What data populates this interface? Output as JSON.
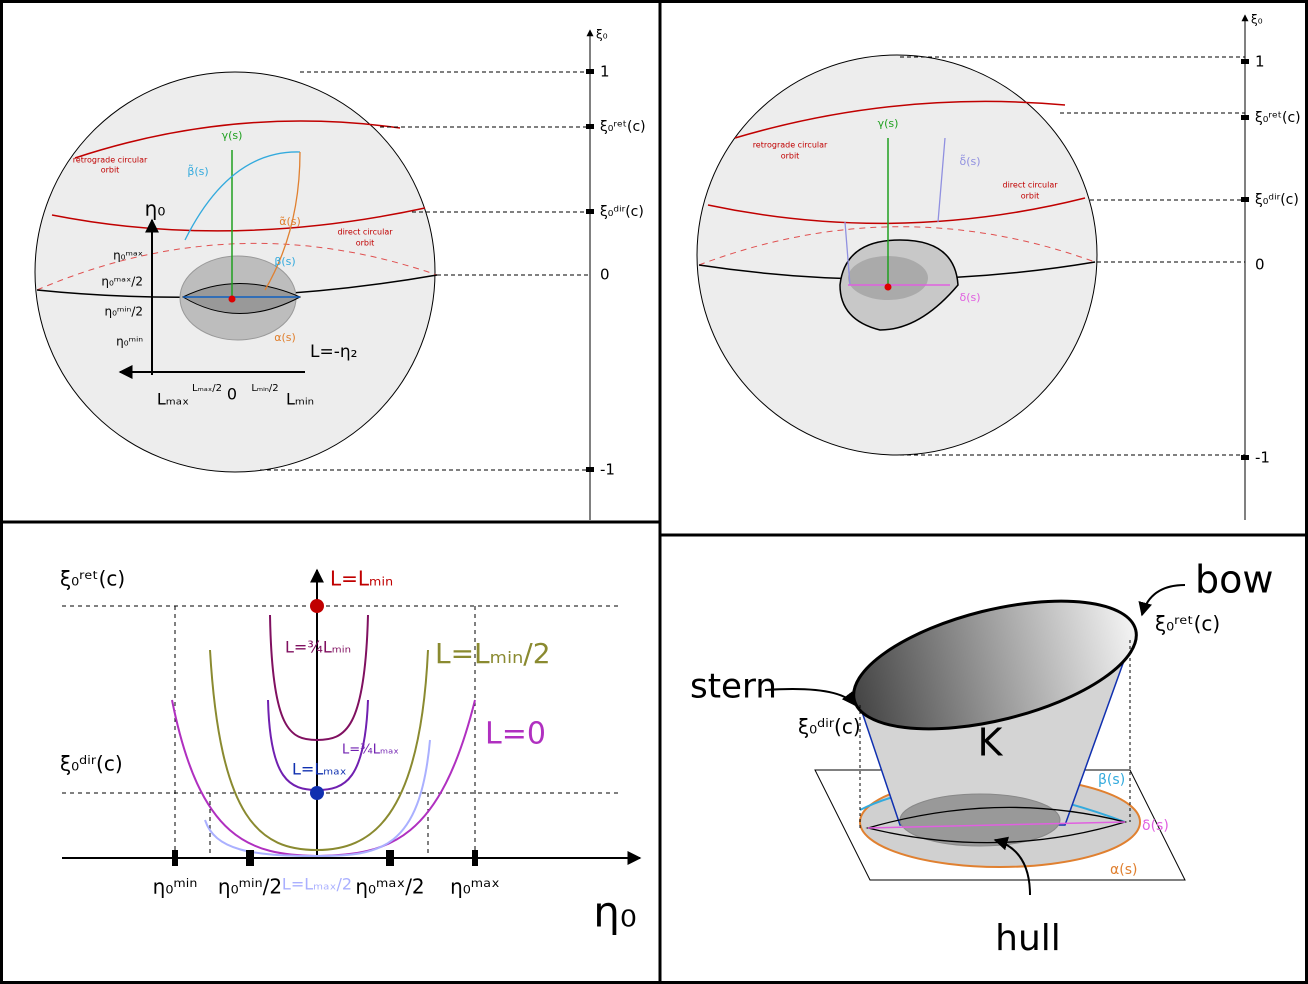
{
  "top_left": {
    "axis_label": "ξ₀",
    "ticks": [
      "1",
      "ξ₀ʳᵉᵗ(c)",
      "ξ₀ᵈⁱʳ(c)",
      "0",
      "-1"
    ],
    "orbit_retro": [
      "retrograde circular",
      "orbit"
    ],
    "orbit_direct": [
      "direct circular",
      "orbit"
    ],
    "curves": [
      "γ(s)",
      "β̃(s)",
      "α̃(s)",
      "β(s)",
      "α(s)"
    ],
    "eta_axis": "η₀",
    "eta_ticks": [
      "η₀ᵐᵃˣ",
      "η₀ᵐᵃˣ/2",
      "η₀ᵐⁱⁿ/2",
      "η₀ᵐⁱⁿ"
    ],
    "l_axis": "L=-η₂",
    "l_ticks": [
      "Lₘₐₓ",
      "Lₘₐₓ/2",
      "0",
      "Lₘᵢₙ/2",
      "Lₘᵢₙ"
    ]
  },
  "top_right": {
    "axis_label": "ξ₀",
    "ticks": [
      "1",
      "ξ₀ʳᵉᵗ(c)",
      "ξ₀ᵈⁱʳ(c)",
      "0",
      "-1"
    ],
    "orbit_retro": [
      "retrograde circular",
      "orbit"
    ],
    "orbit_direct": [
      "direct circular",
      "orbit"
    ],
    "curves": [
      "γ(s)",
      "δ̃(s)",
      "δ(s)"
    ]
  },
  "bottom_left": {
    "y_ticks": [
      "ξ₀ʳᵉᵗ(c)",
      "ξ₀ᵈⁱʳ(c)"
    ],
    "x_axis": "η₀",
    "x_ticks": [
      "η₀ᵐⁱⁿ",
      "η₀ᵐⁱⁿ/2",
      "η₀ᵐᵃˣ/2",
      "η₀ᵐᵃˣ"
    ],
    "curves": [
      "L=Lₘᵢₙ",
      "L=¾Lₘᵢₙ",
      "L=Lₘᵢₙ/2",
      "L=0",
      "L=¾Lₘₐₓ",
      "L=Lₘₐₓ",
      "L=Lₘₐₓ/2"
    ]
  },
  "bottom_right": {
    "labels": [
      "bow",
      "ξ₀ʳᵉᵗ(c)",
      "stern",
      "ξ₀ᵈⁱʳ(c)",
      "K",
      "β(s)",
      "δ(s)",
      "α(s)",
      "hull"
    ]
  }
}
